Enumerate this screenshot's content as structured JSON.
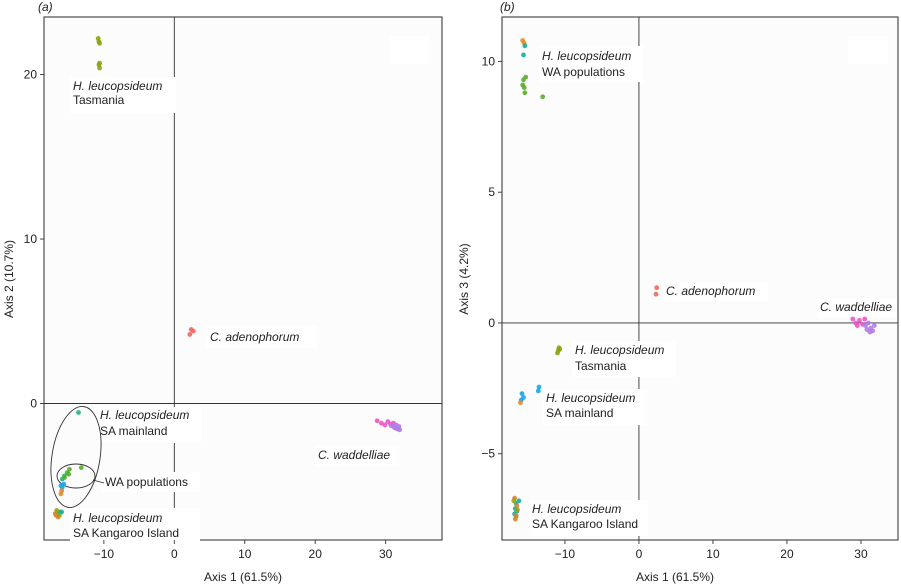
{
  "chart_data": [
    {
      "type": "scatter",
      "panel_label": "(a)",
      "xlabel": "Axis 1 (61.5%)",
      "ylabel": "Axis 2 (10.7%)",
      "xlim": [
        -18.5,
        38
      ],
      "ylim": [
        -8.3,
        23.5
      ],
      "xticks": [
        -10,
        0,
        10,
        20,
        30
      ],
      "yticks": [
        0,
        10,
        20
      ],
      "zero_lines": true,
      "series": [
        {
          "name": "H. leucopsideum Tasmania",
          "color": "#8da30f",
          "points": [
            [
              -10.8,
              22.2
            ],
            [
              -10.7,
              22.0
            ],
            [
              -10.6,
              21.9
            ],
            [
              -10.6,
              20.7
            ],
            [
              -10.7,
              20.6
            ],
            [
              -10.6,
              20.4
            ]
          ]
        },
        {
          "name": "H. leucopsideum SA mainland",
          "color": "#1ab78b",
          "points": [
            [
              -13.6,
              -0.55
            ],
            [
              -15.6,
              -4.4
            ],
            [
              -15.9,
              -4.6
            ]
          ]
        },
        {
          "name": "WA populations",
          "color": "#5aae27",
          "points": [
            [
              -15.2,
              -4.2
            ],
            [
              -14.9,
              -4.0
            ],
            [
              -13.2,
              -3.9
            ],
            [
              -15.6,
              -4.5
            ],
            [
              -15.0,
              -4.3
            ]
          ]
        },
        {
          "name": "SA mainland (blue)",
          "color": "#1aa6ea",
          "points": [
            [
              -15.7,
              -4.9
            ],
            [
              -15.9,
              -5.1
            ],
            [
              -16.1,
              -5.0
            ]
          ]
        },
        {
          "name": "SA mainland (orange)",
          "color": "#e58a2b",
          "points": [
            [
              -16.0,
              -5.3
            ],
            [
              -16.1,
              -5.5
            ]
          ]
        },
        {
          "name": "H. leucopsideum SA Kangaroo Island",
          "color": "#15b09c",
          "points": [
            [
              -16.6,
              -6.6
            ],
            [
              -16.2,
              -6.6
            ],
            [
              -16.4,
              -6.7
            ],
            [
              -16.0,
              -6.6
            ]
          ]
        },
        {
          "name": "SA Kangaroo Island (orange)",
          "color": "#d7862a",
          "points": [
            [
              -16.8,
              -6.8
            ],
            [
              -16.5,
              -6.9
            ],
            [
              -16.9,
              -6.7
            ]
          ]
        },
        {
          "name": "SA Kangaroo Island (olive)",
          "color": "#9fa31b",
          "points": [
            [
              -16.7,
              -6.5
            ],
            [
              -16.3,
              -6.8
            ]
          ]
        },
        {
          "name": "C. adenophorum",
          "color": "#f0675f",
          "points": [
            [
              2.4,
              4.5
            ],
            [
              2.7,
              4.4
            ],
            [
              2.2,
              4.2
            ]
          ]
        },
        {
          "name": "C. waddelliae (pink)",
          "color": "#ec54c7",
          "points": [
            [
              28.8,
              -1.05
            ],
            [
              29.4,
              -1.2
            ],
            [
              29.9,
              -1.3
            ],
            [
              30.3,
              -1.1
            ],
            [
              30.7,
              -1.25
            ],
            [
              31.1,
              -1.2
            ]
          ]
        },
        {
          "name": "C. waddelliae (purple)",
          "color": "#b07ce6",
          "points": [
            [
              30.8,
              -1.35
            ],
            [
              31.2,
              -1.45
            ],
            [
              31.5,
              -1.3
            ],
            [
              31.7,
              -1.55
            ],
            [
              31.9,
              -1.4
            ],
            [
              32.0,
              -1.6
            ],
            [
              31.4,
              -1.5
            ]
          ]
        }
      ],
      "annotations": [
        {
          "italic": "H. leucopsideum",
          "plain": "Tasmania"
        },
        {
          "italic": "C. adenophorum",
          "plain": ""
        },
        {
          "italic": "H. leucopsideum",
          "plain": "SA mainland"
        },
        {
          "italic": "",
          "plain": "WA populations"
        },
        {
          "italic": "C. waddelliae",
          "plain": ""
        },
        {
          "italic": "H. leucopsideum",
          "plain": "SA Kangaroo Island"
        }
      ]
    },
    {
      "type": "scatter",
      "panel_label": "(b)",
      "xlabel": "Axis 1 (61.5%)",
      "ylabel": "Axis 3 (4.2%)",
      "xlim": [
        -18.5,
        35
      ],
      "ylim": [
        -8.3,
        11.7
      ],
      "xticks": [
        -10,
        0,
        10,
        20,
        30
      ],
      "yticks": [
        -5,
        0,
        5,
        10
      ],
      "zero_lines": true,
      "series": [
        {
          "name": "WA populations (orange)",
          "color": "#e58a2b",
          "points": [
            [
              -15.7,
              10.8
            ],
            [
              -15.5,
              10.7
            ]
          ]
        },
        {
          "name": "WA populations (teal)",
          "color": "#15b09c",
          "points": [
            [
              -15.4,
              10.6
            ],
            [
              -15.6,
              10.25
            ]
          ]
        },
        {
          "name": "WA populations",
          "color": "#5aae27",
          "points": [
            [
              -15.3,
              9.4
            ],
            [
              -15.6,
              9.3
            ],
            [
              -15.5,
              9.0
            ],
            [
              -15.7,
              9.1
            ],
            [
              -15.4,
              8.8
            ],
            [
              -13.0,
              8.65
            ]
          ]
        },
        {
          "name": "C. adenophorum",
          "color": "#f0675f",
          "points": [
            [
              2.4,
              1.35
            ],
            [
              2.3,
              1.1
            ]
          ]
        },
        {
          "name": "C. waddelliae (pink)",
          "color": "#ec54c7",
          "points": [
            [
              28.9,
              0.15
            ],
            [
              29.3,
              0.0
            ],
            [
              29.8,
              0.1
            ],
            [
              30.2,
              -0.05
            ],
            [
              30.5,
              0.15
            ],
            [
              29.5,
              -0.1
            ]
          ]
        },
        {
          "name": "C. waddelliae (purple)",
          "color": "#b07ce6",
          "points": [
            [
              30.6,
              -0.1
            ],
            [
              31.0,
              0.0
            ],
            [
              31.3,
              -0.2
            ],
            [
              31.6,
              -0.3
            ],
            [
              31.8,
              -0.1
            ],
            [
              31.2,
              -0.35
            ],
            [
              30.8,
              -0.25
            ]
          ]
        },
        {
          "name": "H. leucopsideum Tasmania",
          "color": "#8da30f",
          "points": [
            [
              -10.8,
              -0.95
            ],
            [
              -10.9,
              -1.05
            ],
            [
              -11.0,
              -1.15
            ],
            [
              -10.7,
              -1.0
            ]
          ]
        },
        {
          "name": "H. leucopsideum SA mainland",
          "color": "#1aa6ea",
          "points": [
            [
              -15.8,
              -2.7
            ],
            [
              -15.6,
              -2.85
            ],
            [
              -15.9,
              -2.95
            ],
            [
              -13.5,
              -2.45
            ],
            [
              -13.6,
              -2.6
            ]
          ]
        },
        {
          "name": "SA mainland (orange)",
          "color": "#e58a2b",
          "points": [
            [
              -16.0,
              -3.05
            ]
          ]
        },
        {
          "name": "H. leucopsideum SA Kangaroo Island",
          "color": "#15b09c",
          "points": [
            [
              -16.6,
              -6.9
            ],
            [
              -16.7,
              -7.1
            ],
            [
              -16.5,
              -7.2
            ],
            [
              -16.8,
              -7.3
            ],
            [
              -16.6,
              -7.4
            ],
            [
              -16.2,
              -6.8
            ]
          ]
        },
        {
          "name": "SA Kangaroo Island (orange)",
          "color": "#d7862a",
          "points": [
            [
              -16.8,
              -6.7
            ],
            [
              -16.5,
              -7.0
            ],
            [
              -16.7,
              -7.5
            ],
            [
              -16.6,
              -7.35
            ]
          ]
        },
        {
          "name": "SA Kangaroo Island (olive)",
          "color": "#9fa31b",
          "points": [
            [
              -16.9,
              -6.8
            ],
            [
              -16.4,
              -7.15
            ]
          ]
        }
      ],
      "annotations": [
        {
          "italic": "H. leucopsideum",
          "plain": "WA populations"
        },
        {
          "italic": "C. adenophorum",
          "plain": ""
        },
        {
          "italic": "C. waddelliae",
          "plain": ""
        },
        {
          "italic": "H. leucopsideum",
          "plain": "Tasmania"
        },
        {
          "italic": "H. leucopsideum",
          "plain": "SA mainland"
        },
        {
          "italic": "H. leucopsideum",
          "plain": "SA Kangaroo Island"
        }
      ]
    }
  ]
}
